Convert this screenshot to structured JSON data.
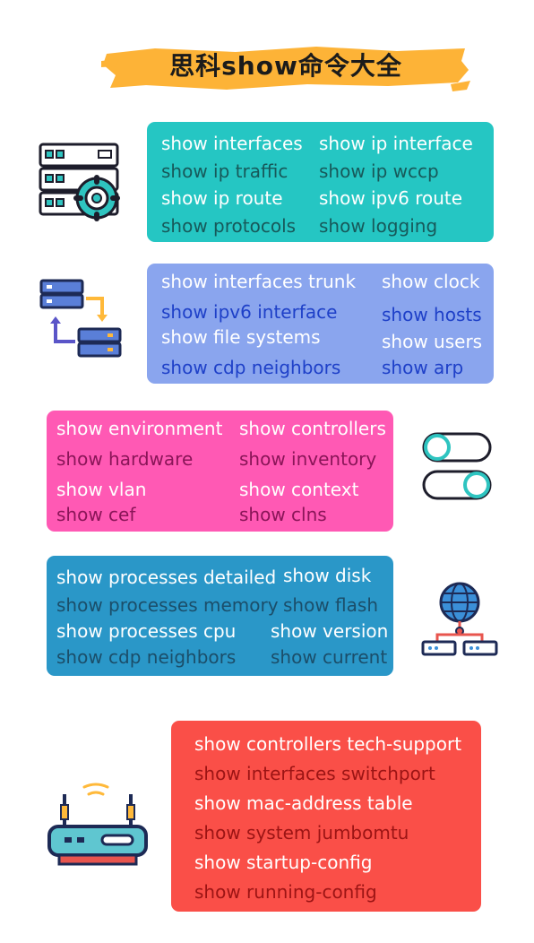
{
  "title": "思科show命令大全",
  "colors": {
    "banner": "#fdb337",
    "panel1": "#25c6c3",
    "panel2": "#8aa5ee",
    "panel3": "#ff59b4",
    "panel4": "#2a97c8",
    "panel5": "#fa4f48"
  },
  "panels": [
    {
      "icon": "server-gear-icon",
      "commands": [
        "show interfaces",
        "show ip interface",
        "show ip traffic",
        "show ip wccp",
        "show ip route",
        "show ipv6 route",
        "show protocols",
        "show logging"
      ]
    },
    {
      "icon": "server-sync-icon",
      "commands": [
        "show interfaces trunk",
        "show clock",
        "show ipv6 interface",
        "show hosts",
        "show file systems",
        "show users",
        "show cdp neighbors",
        "show arp"
      ]
    },
    {
      "icon": "toggle-switch-icon",
      "commands": [
        "show environment",
        "show controllers",
        "show hardware",
        "show inventory",
        "show vlan",
        "show context",
        "show cef",
        "show clns"
      ]
    },
    {
      "icon": "network-globe-icon",
      "commands": [
        "show processes detailed",
        "show disk",
        "show processes memory",
        "show flash",
        "show processes cpu",
        "show version",
        "show cdp neighbors",
        "show current"
      ]
    },
    {
      "icon": "router-wifi-icon",
      "commands": [
        "show controllers tech-support",
        "show interfaces switchport",
        "show mac-address table",
        "show system jumbomtu",
        "show startup-config",
        "show running-config"
      ]
    }
  ]
}
